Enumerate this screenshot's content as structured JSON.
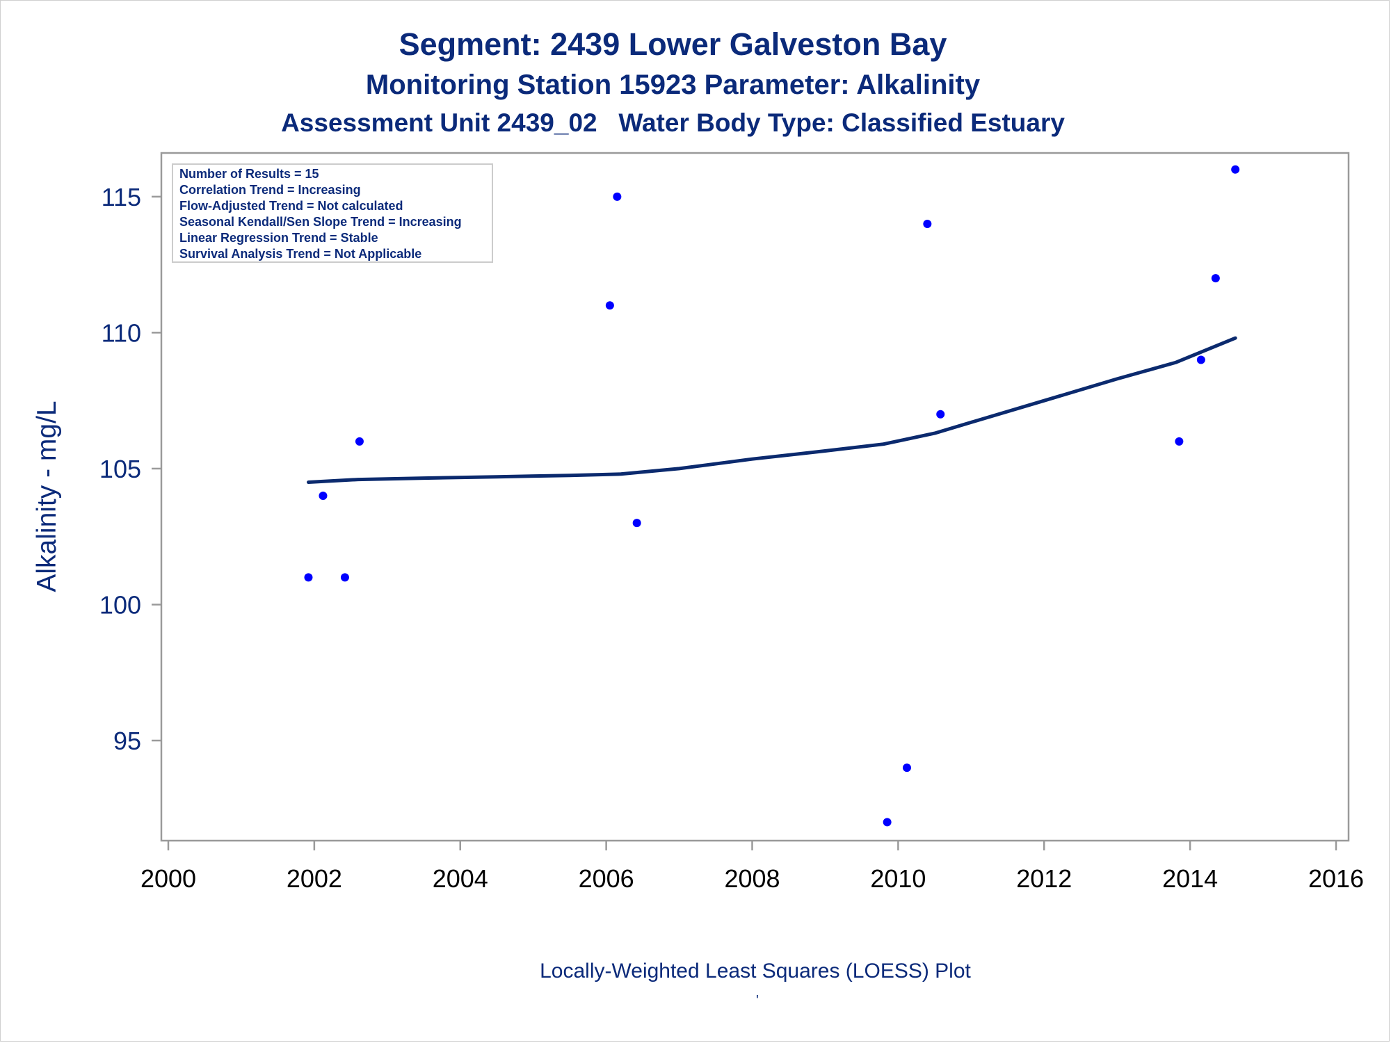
{
  "title": {
    "line1": "Segment: 2439  Lower Galveston Bay",
    "line2": "Monitoring Station 15923 Parameter: Alkalinity",
    "line3": "Assessment Unit 2439_02   Water Body Type: Classified Estuary"
  },
  "footnote": "Locally-Weighted Least Squares (LOESS) Plot",
  "footnote_mark": "'",
  "colors": {
    "text": "#0b2a7a",
    "points": "#0000ff",
    "line": "#0b2a6e",
    "axis": "#9a9a9a"
  },
  "chart_data": {
    "type": "scatter",
    "ylabel": "Alkalinity - mg/L",
    "xlabel": "",
    "xlim": [
      2000,
      2016
    ],
    "ylim": [
      91.6,
      116.3
    ],
    "xticks": [
      2000,
      2002,
      2004,
      2006,
      2008,
      2010,
      2012,
      2014,
      2016
    ],
    "yticks": [
      95,
      100,
      105,
      110,
      115
    ],
    "stats": [
      "Number of Results = 15",
      "Correlation Trend = Increasing",
      "Flow-Adjusted Trend = Not calculated",
      "Seasonal Kendall/Sen Slope Trend = Increasing",
      "Linear Regression Trend = Stable",
      "Survival Analysis Trend = Not Applicable"
    ],
    "points": [
      {
        "x": 2001.92,
        "y": 101
      },
      {
        "x": 2002.12,
        "y": 104
      },
      {
        "x": 2002.42,
        "y": 101
      },
      {
        "x": 2002.62,
        "y": 106
      },
      {
        "x": 2006.05,
        "y": 111
      },
      {
        "x": 2006.15,
        "y": 115
      },
      {
        "x": 2006.42,
        "y": 103
      },
      {
        "x": 2009.85,
        "y": 92
      },
      {
        "x": 2010.12,
        "y": 94
      },
      {
        "x": 2010.4,
        "y": 114
      },
      {
        "x": 2010.58,
        "y": 107
      },
      {
        "x": 2013.85,
        "y": 106
      },
      {
        "x": 2014.15,
        "y": 109
      },
      {
        "x": 2014.35,
        "y": 112
      },
      {
        "x": 2014.62,
        "y": 116
      }
    ],
    "loess": [
      {
        "x": 2001.92,
        "y": 104.5
      },
      {
        "x": 2002.6,
        "y": 104.6
      },
      {
        "x": 2003.5,
        "y": 104.65
      },
      {
        "x": 2004.5,
        "y": 104.7
      },
      {
        "x": 2005.5,
        "y": 104.75
      },
      {
        "x": 2006.2,
        "y": 104.8
      },
      {
        "x": 2007.0,
        "y": 105.0
      },
      {
        "x": 2008.0,
        "y": 105.35
      },
      {
        "x": 2009.0,
        "y": 105.65
      },
      {
        "x": 2009.8,
        "y": 105.9
      },
      {
        "x": 2010.5,
        "y": 106.3
      },
      {
        "x": 2011.0,
        "y": 106.7
      },
      {
        "x": 2012.0,
        "y": 107.5
      },
      {
        "x": 2013.0,
        "y": 108.3
      },
      {
        "x": 2013.8,
        "y": 108.9
      },
      {
        "x": 2014.62,
        "y": 109.8
      }
    ]
  }
}
